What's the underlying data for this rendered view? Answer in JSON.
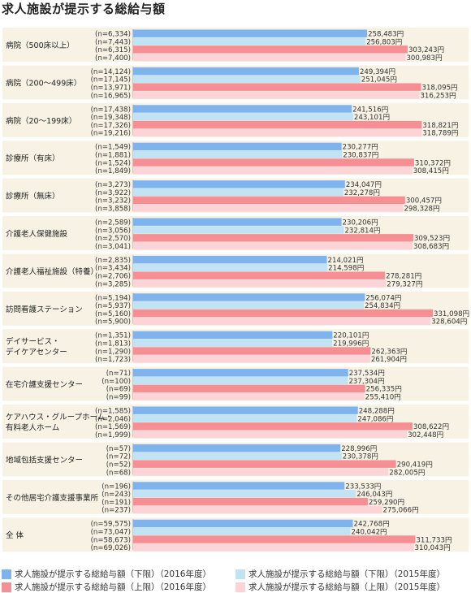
{
  "title": "求人施設が提示する総給与額",
  "colors": {
    "lower2016": "#7fb3ee",
    "lower2015": "#c2e3f4",
    "upper2016": "#f58f93",
    "upper2015": "#fad4d6",
    "group_bg": "#f7f2e4"
  },
  "chart_data": {
    "type": "bar",
    "orientation": "horizontal",
    "title": "求人施設が提示する総給与額",
    "unit": "円",
    "xlim": [
      0,
      340000
    ],
    "grid": false,
    "legend_position": "bottom",
    "categories": [
      [
        "病院（500床以上）"
      ],
      [
        "病院（200〜499床）"
      ],
      [
        "病院（20〜199床）"
      ],
      [
        "診療所（有床）"
      ],
      [
        "診療所（無床）"
      ],
      [
        "介護老人保健施設"
      ],
      [
        "介護老人福祉施設（特養）"
      ],
      [
        "訪問看護ステーション"
      ],
      [
        "デイサービス・",
        "デイケアセンター"
      ],
      [
        "在宅介護支援センター"
      ],
      [
        "ケアハウス・グループホーム・",
        "有料老人ホーム"
      ],
      [
        "地域包括支援センター"
      ],
      [
        "その他居宅介護支援事業所"
      ],
      [
        "全 体"
      ]
    ],
    "series": [
      {
        "name": "求人施設が提示する総給与額（下限）（2016年度）",
        "color": "#7fb3ee",
        "values": [
          258483,
          249394,
          241516,
          230277,
          234047,
          230206,
          214021,
          256074,
          220101,
          237534,
          248288,
          228996,
          233533,
          242768
        ],
        "value_labels": [
          "258,483円",
          "249,394円",
          "241,516円",
          "230,277円",
          "234,047円",
          "230,206円",
          "214,021円",
          "256,074円",
          "220,101円",
          "237,534円",
          "248,288円",
          "228,996円",
          "233,533円",
          "242,768円"
        ],
        "n_labels": [
          "(n=6,334)",
          "(n=14,124)",
          "(n=17,438)",
          "(n=1,549)",
          "(n=3,273)",
          "(n=2,589)",
          "(n=2,835)",
          "(n=5,194)",
          "(n=1,351)",
          "(n=71)",
          "(n=1,585)",
          "(n=57)",
          "(n=196)",
          "(n=59,575)"
        ]
      },
      {
        "name": "求人施設が提示する総給与額（下限）（2015年度）",
        "color": "#c2e3f4",
        "values": [
          256803,
          251045,
          243101,
          230837,
          232278,
          232814,
          214598,
          254834,
          219996,
          237304,
          247086,
          230378,
          246043,
          240042
        ],
        "value_labels": [
          "256,803円",
          "251,045円",
          "243,101円",
          "230,837円",
          "232,278円",
          "232,814円",
          "214,598円",
          "254,834円",
          "219,996円",
          "237,304円",
          "247,086円",
          "230,378円",
          "246,043円",
          "240,042円"
        ],
        "n_labels": [
          "(n=7,443)",
          "(n=17,145)",
          "(n=19,348)",
          "(n=1,881)",
          "(n=3,922)",
          "(n=3,056)",
          "(n=3,434)",
          "(n=5,937)",
          "(n=1,813)",
          "(n=100)",
          "(n=2,046)",
          "(n=72)",
          "(n=243)",
          "(n=73,047)"
        ]
      },
      {
        "name": "求人施設が提示する総給与額（上限）（2016年度）",
        "color": "#f58f93",
        "values": [
          303243,
          318095,
          318821,
          310372,
          300457,
          309523,
          278281,
          331098,
          262363,
          256335,
          308622,
          290419,
          259290,
          311733
        ],
        "value_labels": [
          "303,243円",
          "318,095円",
          "318,821円",
          "310,372円",
          "300,457円",
          "309,523円",
          "278,281円",
          "331,098円",
          "262,363円",
          "256,335円",
          "308,622円",
          "290,419円",
          "259,290円",
          "311,733円"
        ],
        "n_labels": [
          "(n=6,315)",
          "(n=13,971)",
          "(n=17,326)",
          "(n=1,524)",
          "(n=3,232)",
          "(n=2,570)",
          "(n=2,706)",
          "(n=5,160)",
          "(n=1,290)",
          "(n=69)",
          "(n=1,569)",
          "(n=52)",
          "(n=191)",
          "(n=58,673)"
        ]
      },
      {
        "name": "求人施設が提示する総給与額（上限）（2015年度）",
        "color": "#fad4d6",
        "values": [
          300983,
          316253,
          318789,
          308415,
          298328,
          308683,
          279327,
          328604,
          261904,
          255410,
          302448,
          282005,
          275066,
          310043
        ],
        "value_labels": [
          "300,983円",
          "316,253円",
          "318,789円",
          "308,415円",
          "298,328円",
          "308,683円",
          "279,327円",
          "328,604円",
          "261,904円",
          "255,410円",
          "302,448円",
          "282,005円",
          "275,066円",
          "310,043円"
        ],
        "n_labels": [
          "(n=7,400)",
          "(n=16,965)",
          "(n=19,216)",
          "(n=1,849)",
          "(n=3,858)",
          "(n=3,041)",
          "(n=3,285)",
          "(n=5,900)",
          "(n=1,723)",
          "(n=99)",
          "(n=1,999)",
          "(n=68)",
          "(n=237)",
          "(n=69,026)"
        ]
      }
    ]
  }
}
